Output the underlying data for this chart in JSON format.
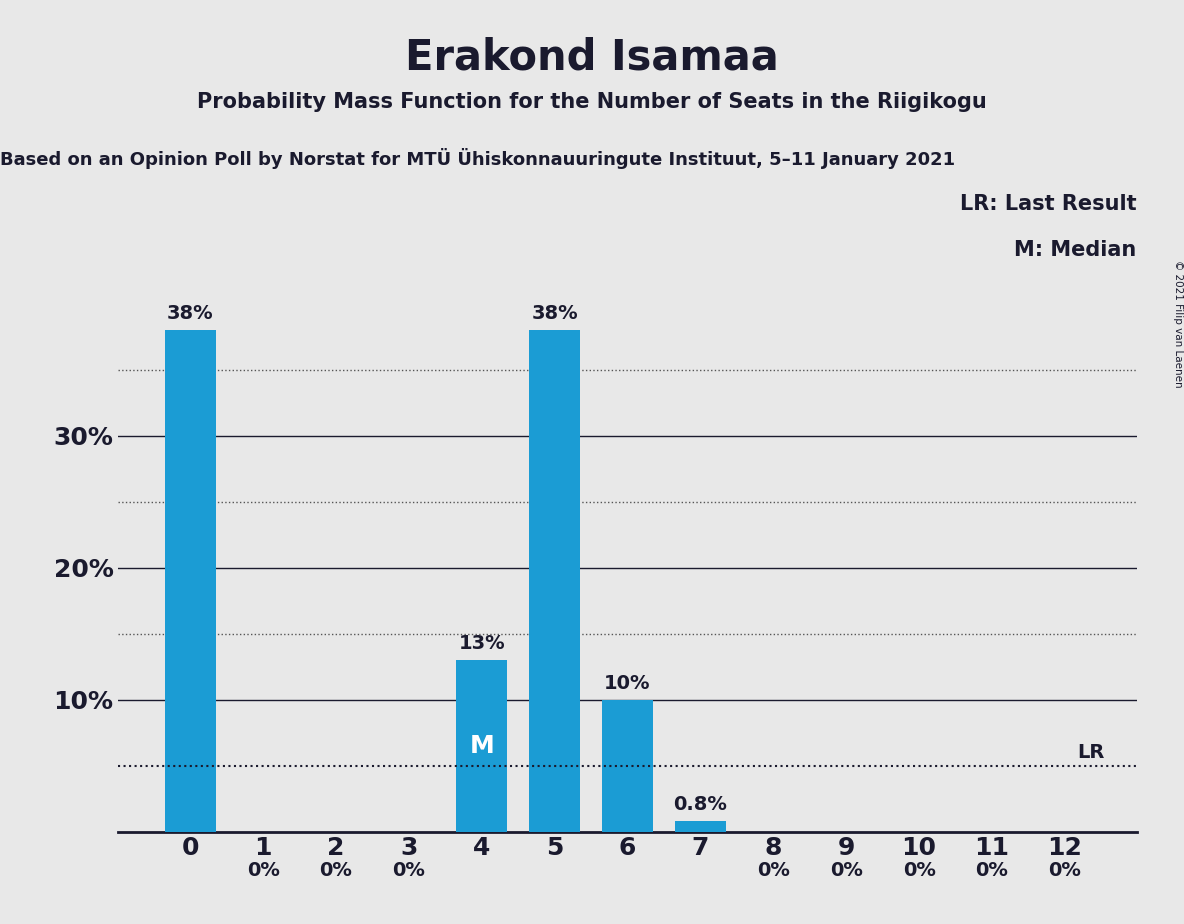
{
  "title": "Erakond Isamaa",
  "subtitle": "Probability Mass Function for the Number of Seats in the Riigikogu",
  "source": "Based on an Opinion Poll by Norstat for MTÜ Ühiskonnauuringute Instituut, 5–11 January 2021",
  "copyright": "© 2021 Filip van Laenen",
  "categories": [
    0,
    1,
    2,
    3,
    4,
    5,
    6,
    7,
    8,
    9,
    10,
    11,
    12
  ],
  "values": [
    38,
    0,
    0,
    0,
    13,
    38,
    10,
    0.8,
    0,
    0,
    0,
    0,
    0
  ],
  "bar_color": "#1B9CD4",
  "background_color": "#E8E8E8",
  "text_color": "#1a1a2e",
  "median_seat": 4,
  "lr_value": 5.0,
  "legend_lr": "LR: Last Result",
  "legend_m": "M: Median",
  "ylim": [
    0,
    42
  ],
  "yticks_solid": [
    10,
    20,
    30
  ],
  "yticks_dotted": [
    15,
    25,
    35
  ],
  "ylabel_format": "%"
}
